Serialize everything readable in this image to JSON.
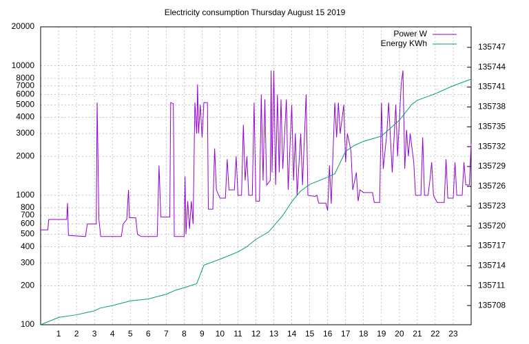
{
  "chart_data": {
    "type": "line",
    "title": "Electricity consumption Thursday August 15 2019",
    "xlim": [
      0,
      24
    ],
    "xticks": [
      1,
      2,
      3,
      4,
      5,
      6,
      7,
      8,
      9,
      10,
      11,
      12,
      13,
      14,
      15,
      16,
      17,
      18,
      19,
      20,
      21,
      22,
      23
    ],
    "ylim": [
      100,
      20000
    ],
    "ylog": true,
    "yticks": [
      100,
      200,
      300,
      400,
      500,
      600,
      700,
      800,
      1000,
      2000,
      3000,
      4000,
      5000,
      6000,
      7000,
      8000,
      10000,
      20000
    ],
    "y2lim": [
      135705.1,
      135750.1
    ],
    "y2ticks": [
      135708,
      135711,
      135714,
      135717,
      135720,
      135723,
      135726,
      135729,
      135732,
      135735,
      135738,
      135741,
      135744,
      135747
    ],
    "grid": true,
    "legend": "top-right",
    "series": [
      {
        "name": "Power W",
        "color": "#9400d3",
        "x": [
          0,
          0.4,
          0.45,
          1.45,
          1.5,
          1.55,
          2.5,
          2.6,
          3.1,
          3.15,
          3.25,
          3.35,
          4.5,
          4.6,
          4.8,
          4.9,
          4.95,
          5.3,
          5.4,
          5.6,
          6.5,
          6.6,
          6.7,
          7.2,
          7.25,
          7.4,
          7.45,
          8.0,
          8.05,
          8.1,
          8.2,
          8.3,
          8.4,
          8.5,
          8.6,
          8.7,
          8.75,
          8.8,
          8.9,
          9.0,
          9.1,
          9.3,
          9.35,
          9.6,
          9.7,
          9.8,
          10.0,
          10.3,
          10.4,
          10.5,
          10.8,
          10.9,
          11.0,
          11.2,
          11.3,
          11.4,
          11.5,
          11.6,
          11.8,
          11.9,
          12.0,
          12.2,
          12.3,
          12.4,
          12.5,
          12.6,
          12.8,
          12.85,
          12.9,
          13.0,
          13.1,
          13.2,
          13.3,
          13.4,
          13.5,
          13.7,
          13.8,
          14.0,
          14.1,
          14.2,
          14.3,
          14.5,
          14.6,
          14.8,
          14.9,
          15.3,
          15.4,
          15.5,
          15.9,
          16.0,
          16.1,
          16.2,
          16.4,
          16.5,
          16.6,
          16.7,
          16.9,
          17.0,
          17.1,
          17.3,
          17.4,
          17.6,
          17.7,
          17.8,
          18.0,
          18.5,
          18.6,
          18.9,
          19.0,
          19.1,
          19.3,
          19.4,
          19.6,
          19.8,
          19.9,
          20.1,
          20.2,
          20.3,
          20.4,
          20.5,
          20.6,
          20.8,
          20.9,
          21.2,
          21.3,
          21.4,
          21.6,
          21.7,
          21.8,
          21.9,
          22.1,
          22.5,
          22.6,
          22.7,
          23.0,
          23.1,
          23.2,
          23.5,
          23.6,
          23.7,
          23.9,
          24
        ],
        "values": [
          540,
          540,
          650,
          650,
          870,
          490,
          480,
          600,
          600,
          5200,
          650,
          480,
          480,
          600,
          650,
          1100,
          670,
          670,
          500,
          480,
          480,
          1700,
          680,
          680,
          5200,
          5100,
          480,
          480,
          1400,
          500,
          900,
          550,
          900,
          600,
          5200,
          3000,
          7200,
          3000,
          5000,
          2800,
          5200,
          5200,
          780,
          780,
          2300,
          1100,
          950,
          950,
          1900,
          1100,
          1100,
          2000,
          1000,
          1000,
          3500,
          1300,
          2000,
          1000,
          1000,
          5200,
          900,
          900,
          6000,
          1300,
          5500,
          1200,
          1300,
          9200,
          1500,
          9200,
          1200,
          6000,
          1500,
          5500,
          1600,
          5500,
          1100,
          5000,
          1300,
          3000,
          1000,
          3000,
          1200,
          6000,
          1000,
          980,
          1000,
          870,
          870,
          760,
          1700,
          860,
          5200,
          2800,
          5200,
          3000,
          5000,
          1800,
          3000,
          2200,
          1100,
          1500,
          900,
          1100,
          1050,
          1050,
          880,
          880,
          5200,
          1600,
          3000,
          5200,
          1500,
          5000,
          2000,
          7200,
          9200,
          1600,
          3200,
          2000,
          3000,
          1800,
          1000,
          1000,
          2800,
          1000,
          1000,
          1300,
          1800,
          1000,
          880,
          880,
          1900,
          950,
          950,
          1800,
          1000,
          1000,
          1800,
          1200,
          1200,
          2500
        ]
      },
      {
        "name": "Energy KWh",
        "color": "#009e73",
        "axis": "y2",
        "x": [
          0,
          1,
          2,
          3,
          3.3,
          4,
          5,
          6,
          7,
          7.5,
          8,
          8.7,
          9.1,
          10,
          11,
          11.5,
          12,
          12.7,
          13.5,
          14,
          14.5,
          15,
          16,
          16.4,
          17,
          17.5,
          18,
          19,
          19.5,
          20,
          20.7,
          21,
          22,
          23,
          24
        ],
        "values": [
          135705.1,
          135706.2,
          135706.6,
          135707.2,
          135707.6,
          135708.0,
          135708.7,
          135709.0,
          135709.7,
          135710.3,
          135710.7,
          135711.3,
          135714.1,
          135715.0,
          135716.1,
          135716.9,
          135718.0,
          135719.1,
          135721.6,
          135723.7,
          135725.3,
          135726.3,
          135727.4,
          135727.9,
          135731.3,
          135732.2,
          135732.8,
          135733.6,
          135734.8,
          135736.0,
          135738.4,
          135739.0,
          135740.0,
          135741.2,
          135742.2
        ]
      }
    ]
  }
}
